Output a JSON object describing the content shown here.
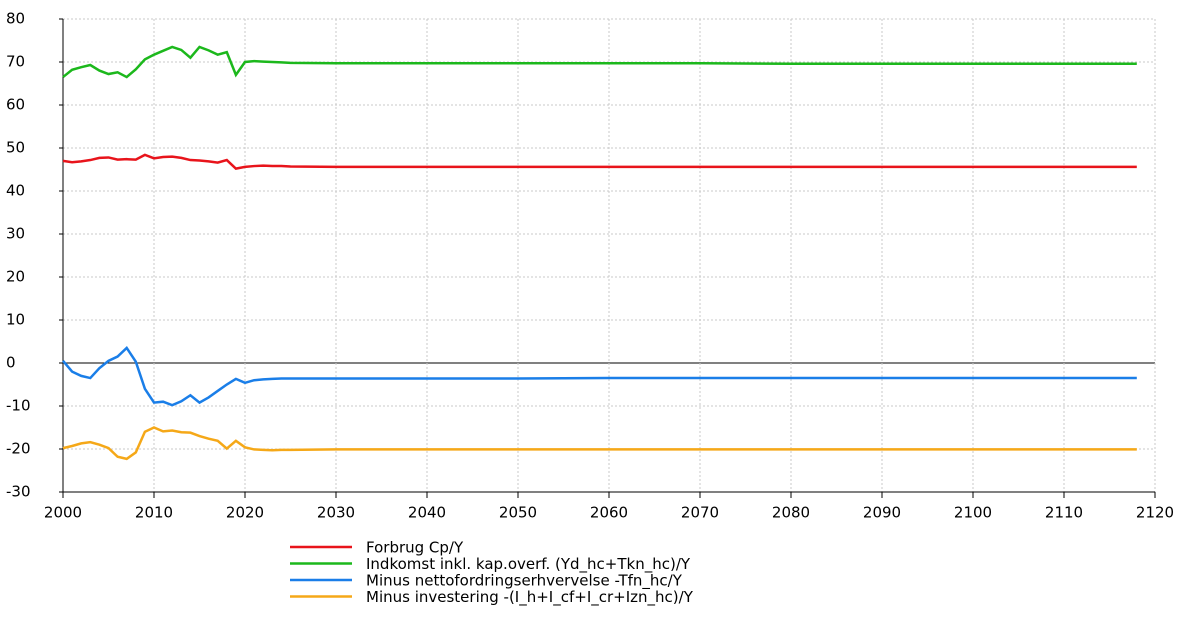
{
  "chart_data": {
    "type": "line",
    "x": [
      2000,
      2001,
      2002,
      2003,
      2004,
      2005,
      2006,
      2007,
      2008,
      2009,
      2010,
      2011,
      2012,
      2013,
      2014,
      2015,
      2016,
      2017,
      2018,
      2019,
      2020,
      2021,
      2022,
      2023,
      2024,
      2025,
      2030,
      2040,
      2050,
      2060,
      2070,
      2080,
      2090,
      2100,
      2110,
      2118
    ],
    "series": [
      {
        "name": "Forbrug Cp/Y",
        "color": "#e8141b",
        "values": [
          47,
          46.7,
          46.9,
          47.2,
          47.7,
          47.8,
          47.3,
          47.4,
          47.3,
          48.4,
          47.6,
          47.9,
          48,
          47.7,
          47.2,
          47.1,
          46.9,
          46.6,
          47.2,
          45.2,
          45.6,
          45.8,
          45.9,
          45.8,
          45.8,
          45.7,
          45.6,
          45.6,
          45.6,
          45.6,
          45.6,
          45.6,
          45.6,
          45.6,
          45.6,
          45.6
        ]
      },
      {
        "name": "Indkomst inkl. kap.overf. (Yd_hc+Tkn_hc)/Y",
        "color": "#1cb81c",
        "values": [
          66.5,
          68.2,
          68.8,
          69.3,
          68,
          67.2,
          67.6,
          66.5,
          68.3,
          70.6,
          71.7,
          72.6,
          73.5,
          72.8,
          71,
          73.5,
          72.7,
          71.7,
          72.3,
          67,
          70,
          70.2,
          70.1,
          70,
          69.9,
          69.8,
          69.7,
          69.7,
          69.7,
          69.7,
          69.7,
          69.6,
          69.6,
          69.6,
          69.6,
          69.6
        ]
      },
      {
        "name": "Minus nettofordringserhvervelse -Tfn_hc/Y",
        "color": "#1a7ee8",
        "values": [
          0.5,
          -2,
          -3,
          -3.5,
          -1.2,
          0.5,
          1.5,
          3.5,
          0.3,
          -6,
          -9.2,
          -9,
          -9.8,
          -8.9,
          -7.5,
          -9.2,
          -8,
          -6.5,
          -5,
          -3.7,
          -4.6,
          -4,
          -3.8,
          -3.7,
          -3.6,
          -3.6,
          -3.6,
          -3.6,
          -3.6,
          -3.5,
          -3.5,
          -3.5,
          -3.5,
          -3.5,
          -3.5,
          -3.5
        ]
      },
      {
        "name": "Minus investering -(I_h+I_cf+I_cr+Izn_hc)/Y",
        "color": "#f5a818",
        "values": [
          -19.8,
          -19.3,
          -18.7,
          -18.4,
          -19,
          -19.8,
          -21.8,
          -22.3,
          -20.8,
          -16,
          -15,
          -15.9,
          -15.7,
          -16.1,
          -16.2,
          -17,
          -17.6,
          -18.1,
          -19.9,
          -18.1,
          -19.6,
          -20.1,
          -20.2,
          -20.3,
          -20.2,
          -20.2,
          -20.1,
          -20.1,
          -20.1,
          -20.1,
          -20.1,
          -20.1,
          -20.1,
          -20.1,
          -20.1,
          -20.1
        ]
      }
    ],
    "xlim": [
      2000,
      2120
    ],
    "xticks": [
      2000,
      2010,
      2020,
      2030,
      2040,
      2050,
      2060,
      2070,
      2080,
      2090,
      2100,
      2110,
      2120
    ],
    "ylim": [
      -30,
      80
    ],
    "yticks": [
      -30,
      -20,
      -10,
      0,
      10,
      20,
      30,
      40,
      50,
      60,
      70,
      80
    ],
    "grid": true,
    "legend": "bottom"
  }
}
